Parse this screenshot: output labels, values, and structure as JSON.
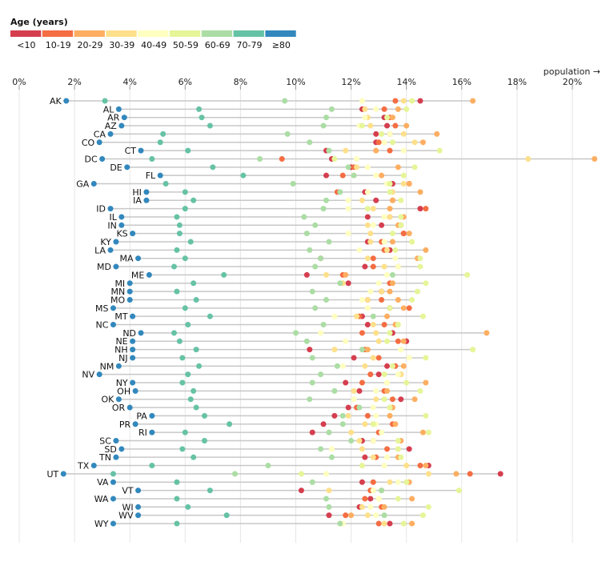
{
  "chart_data": {
    "type": "dot",
    "xlabel": "population →",
    "x_tick_labels": [
      "0%",
      "2%",
      "4%",
      "6%",
      "8%",
      "10%",
      "12%",
      "14%",
      "16%",
      "18%",
      "20%"
    ],
    "x_ticks": [
      0,
      2,
      4,
      6,
      8,
      10,
      12,
      14,
      16,
      18,
      20
    ],
    "xlim": [
      0,
      20.8
    ],
    "grid": true,
    "legend": {
      "title": "Age (years)",
      "placement": "top-left",
      "keys": [
        "<10",
        "10-19",
        "20-29",
        "30-39",
        "40-49",
        "50-59",
        "60-69",
        "70-79",
        "≥80"
      ],
      "colors": [
        "#d53e4f",
        "#f46d43",
        "#fdae61",
        "#fee08b",
        "#ffffbf",
        "#e6f598",
        "#abdda4",
        "#66c2a5",
        "#3288bd"
      ]
    },
    "rows": [
      {
        "state": "AK",
        "values": [
          14.5,
          13.6,
          16.4,
          13.9,
          12.4,
          14.2,
          9.6,
          3.1,
          1.7
        ]
      },
      {
        "state": "AL",
        "values": [
          12.4,
          13.2,
          13.7,
          12.5,
          12.9,
          14.0,
          11.3,
          6.5,
          3.6
        ]
      },
      {
        "state": "AR",
        "values": [
          13.2,
          13.4,
          13.5,
          12.6,
          12.5,
          13.3,
          11.1,
          6.6,
          3.8
        ]
      },
      {
        "state": "AZ",
        "values": [
          13.3,
          13.6,
          14.0,
          12.7,
          12.3,
          12.4,
          11.0,
          6.9,
          3.7
        ]
      },
      {
        "state": "CA",
        "values": [
          12.9,
          13.4,
          15.1,
          13.9,
          13.4,
          13.1,
          9.7,
          5.2,
          3.3
        ]
      },
      {
        "state": "CO",
        "values": [
          12.9,
          13.0,
          14.6,
          14.3,
          13.2,
          13.5,
          10.5,
          5.1,
          2.9
        ]
      },
      {
        "state": "CT",
        "values": [
          11.1,
          13.4,
          12.9,
          11.8,
          13.9,
          15.2,
          11.2,
          6.1,
          4.4
        ]
      },
      {
        "state": "DC",
        "values": [
          11.3,
          9.5,
          20.8,
          18.4,
          12.2,
          11.4,
          8.7,
          4.8,
          3.0
        ]
      },
      {
        "state": "DE",
        "values": [
          12.0,
          12.1,
          13.7,
          12.2,
          12.6,
          14.3,
          11.9,
          7.0,
          3.9
        ]
      },
      {
        "state": "FL",
        "values": [
          11.1,
          11.7,
          13.1,
          12.1,
          12.9,
          13.9,
          12.1,
          8.1,
          5.1
        ]
      },
      {
        "state": "GA",
        "values": [
          13.5,
          14.1,
          14.1,
          13.9,
          13.3,
          13.4,
          9.9,
          5.3,
          2.7
        ]
      },
      {
        "state": "HI",
        "values": [
          12.5,
          11.5,
          14.5,
          13.5,
          12.6,
          13.4,
          11.6,
          6.0,
          4.6
        ]
      },
      {
        "state": "IA",
        "values": [
          12.9,
          13.5,
          13.5,
          12.4,
          11.9,
          13.8,
          11.1,
          6.3,
          4.6
        ]
      },
      {
        "state": "ID",
        "values": [
          14.5,
          14.7,
          13.4,
          12.8,
          11.9,
          12.6,
          11.0,
          6.0,
          3.3
        ]
      },
      {
        "state": "IL",
        "values": [
          12.6,
          13.4,
          13.9,
          13.4,
          13.2,
          13.8,
          10.3,
          5.7,
          3.7
        ]
      },
      {
        "state": "IN",
        "values": [
          13.1,
          13.8,
          13.7,
          12.6,
          12.8,
          13.8,
          10.7,
          5.8,
          3.7
        ]
      },
      {
        "state": "KS",
        "values": [
          13.9,
          13.9,
          14.1,
          12.7,
          11.9,
          13.5,
          10.4,
          5.8,
          4.1
        ]
      },
      {
        "state": "KY",
        "values": [
          12.6,
          13.1,
          13.5,
          12.7,
          13.2,
          14.2,
          11.2,
          6.2,
          3.5
        ]
      },
      {
        "state": "LA",
        "values": [
          13.4,
          13.2,
          14.7,
          13.3,
          12.3,
          13.6,
          10.5,
          5.7,
          3.3
        ]
      },
      {
        "state": "MA",
        "values": [
          10.9,
          12.8,
          14.4,
          12.6,
          13.6,
          14.5,
          10.9,
          6.0,
          4.3
        ]
      },
      {
        "state": "MD",
        "values": [
          12.5,
          12.8,
          13.7,
          13.2,
          13.7,
          14.5,
          10.7,
          5.6,
          3.5
        ]
      },
      {
        "state": "ME",
        "values": [
          10.4,
          11.7,
          11.8,
          11.1,
          13.3,
          16.2,
          13.5,
          7.4,
          4.7
        ]
      },
      {
        "state": "MI",
        "values": [
          11.9,
          13.4,
          13.5,
          11.7,
          13.0,
          14.7,
          11.6,
          6.3,
          4.0
        ]
      },
      {
        "state": "MN",
        "values": [
          13.1,
          13.1,
          13.4,
          13.1,
          12.7,
          14.4,
          10.6,
          5.7,
          4.0
        ]
      },
      {
        "state": "MO",
        "values": [
          12.6,
          13.1,
          13.7,
          12.6,
          12.4,
          14.2,
          11.1,
          6.4,
          4.0
        ]
      },
      {
        "state": "MS",
        "values": [
          13.4,
          14.1,
          13.9,
          12.6,
          12.6,
          13.4,
          10.7,
          6.0,
          3.4
        ]
      },
      {
        "state": "MT",
        "values": [
          12.4,
          12.3,
          13.3,
          12.2,
          11.4,
          14.6,
          12.8,
          6.9,
          4.1
        ]
      },
      {
        "state": "NC",
        "values": [
          12.6,
          13.2,
          13.6,
          12.8,
          13.7,
          13.7,
          11.0,
          6.1,
          3.4
        ]
      },
      {
        "state": "ND",
        "values": [
          13.5,
          12.4,
          16.9,
          12.9,
          10.9,
          13.4,
          10.0,
          5.6,
          4.4
        ]
      },
      {
        "state": "NE",
        "values": [
          14.0,
          13.7,
          13.9,
          13.0,
          11.8,
          13.3,
          10.4,
          5.8,
          4.1
        ]
      },
      {
        "state": "NH",
        "values": [
          10.5,
          12.5,
          12.6,
          11.4,
          13.8,
          16.4,
          12.4,
          6.4,
          4.1
        ]
      },
      {
        "state": "NJ",
        "values": [
          12.1,
          13.0,
          12.8,
          12.8,
          14.1,
          14.7,
          10.6,
          5.9,
          4.1
        ]
      },
      {
        "state": "NM",
        "values": [
          13.3,
          13.6,
          13.9,
          12.5,
          11.7,
          13.5,
          11.5,
          6.5,
          3.6
        ]
      },
      {
        "state": "NV",
        "values": [
          13.0,
          12.7,
          13.8,
          13.8,
          13.7,
          13.2,
          10.9,
          6.1,
          2.9
        ]
      },
      {
        "state": "NY",
        "values": [
          11.8,
          12.4,
          14.7,
          13.3,
          13.3,
          14.0,
          10.6,
          5.9,
          4.1
        ]
      },
      {
        "state": "OH",
        "values": [
          12.3,
          13.2,
          13.3,
          12.1,
          12.9,
          14.5,
          11.4,
          6.3,
          4.2
        ]
      },
      {
        "state": "OK",
        "values": [
          13.8,
          13.5,
          14.3,
          12.9,
          12.1,
          13.2,
          10.5,
          6.2,
          3.6
        ]
      },
      {
        "state": "OR",
        "values": [
          11.9,
          12.2,
          13.5,
          13.4,
          12.8,
          13.4,
          12.3,
          6.4,
          4.0
        ]
      },
      {
        "state": "PA",
        "values": [
          11.4,
          12.6,
          13.4,
          11.9,
          12.9,
          14.7,
          11.7,
          6.7,
          4.8
        ]
      },
      {
        "state": "PR",
        "values": [
          11.0,
          13.5,
          13.6,
          12.5,
          12.9,
          12.8,
          11.7,
          7.6,
          4.2
        ]
      },
      {
        "state": "RI",
        "values": [
          10.6,
          13.0,
          14.6,
          12.0,
          13.1,
          14.8,
          11.2,
          6.0,
          4.8
        ]
      },
      {
        "state": "SC",
        "values": [
          12.4,
          12.8,
          13.8,
          12.3,
          12.8,
          13.7,
          12.0,
          6.7,
          3.5
        ]
      },
      {
        "state": "SD",
        "values": [
          14.1,
          13.3,
          13.7,
          12.4,
          11.3,
          13.7,
          10.9,
          5.9,
          3.7
        ]
      },
      {
        "state": "TN",
        "values": [
          12.5,
          12.9,
          13.7,
          12.8,
          13.3,
          13.8,
          11.3,
          6.3,
          3.5
        ]
      },
      {
        "state": "TX",
        "values": [
          14.8,
          14.5,
          14.7,
          14.0,
          13.2,
          12.4,
          9.0,
          4.8,
          2.7
        ]
      },
      {
        "state": "UT",
        "values": [
          17.4,
          16.3,
          15.8,
          14.8,
          11.1,
          10.2,
          7.8,
          3.4,
          1.6
        ]
      },
      {
        "state": "VA",
        "values": [
          12.4,
          12.8,
          14.1,
          13.4,
          13.7,
          14.0,
          10.6,
          5.7,
          3.4
        ]
      },
      {
        "state": "VT",
        "values": [
          10.2,
          12.7,
          13.1,
          11.2,
          12.8,
          15.9,
          13.1,
          6.9,
          4.3
        ]
      },
      {
        "state": "WA",
        "values": [
          12.7,
          12.5,
          14.2,
          13.0,
          13.0,
          13.7,
          11.1,
          5.7,
          3.4
        ]
      },
      {
        "state": "WI",
        "values": [
          12.3,
          13.1,
          13.2,
          12.4,
          12.7,
          14.8,
          11.2,
          6.1,
          4.3
        ]
      },
      {
        "state": "WV",
        "values": [
          11.2,
          11.8,
          12.0,
          12.6,
          12.9,
          14.6,
          13.2,
          7.5,
          4.3
        ]
      },
      {
        "state": "WY",
        "values": [
          13.4,
          13.0,
          14.2,
          13.2,
          11.7,
          13.9,
          11.6,
          5.7,
          3.4
        ]
      }
    ]
  }
}
